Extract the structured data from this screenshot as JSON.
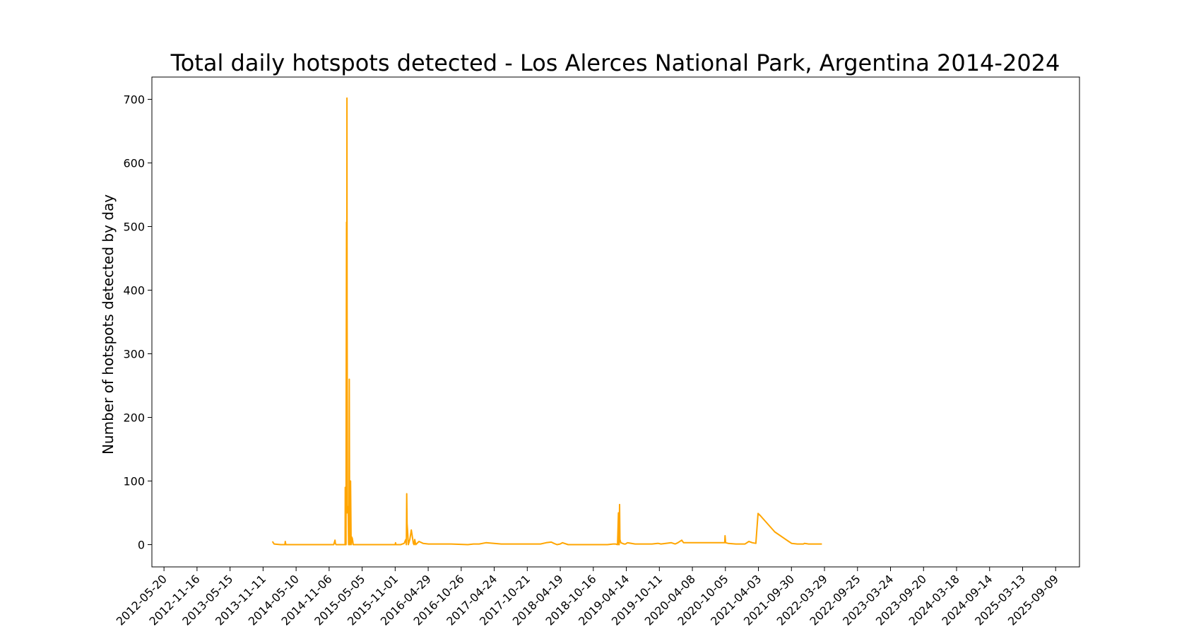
{
  "chart_data": {
    "type": "line",
    "title": "Total daily hotspots detected - Los Alerces National Park, Argentina 2014-2024",
    "xlabel": "",
    "ylabel": "Number of hotspots detected by day",
    "line_color": "#FFA500",
    "grid": false,
    "legend": "none",
    "xlim": [
      "2012-03-15",
      "2026-01-17"
    ],
    "ylim": [
      -35,
      735
    ],
    "x_ticks": [
      "2012-05-20",
      "2012-11-16",
      "2013-05-15",
      "2013-11-11",
      "2014-05-10",
      "2014-11-06",
      "2015-05-05",
      "2015-11-01",
      "2016-04-29",
      "2016-10-26",
      "2017-04-24",
      "2017-10-21",
      "2018-04-19",
      "2018-10-16",
      "2019-04-14",
      "2019-10-11",
      "2020-04-08",
      "2020-10-05",
      "2021-04-03",
      "2021-09-30",
      "2022-03-29",
      "2022-09-25",
      "2023-03-24",
      "2023-09-20",
      "2024-03-18",
      "2024-09-14",
      "2025-03-13",
      "2025-09-09"
    ],
    "y_ticks": [
      0,
      100,
      200,
      300,
      400,
      500,
      600,
      700
    ],
    "series": [
      {
        "name": "",
        "x": [
          "2014-01-01",
          "2014-01-10",
          "2014-02-15",
          "2014-03-10",
          "2014-03-12",
          "2014-03-15",
          "2014-06-01",
          "2014-09-01",
          "2014-12-01",
          "2014-12-08",
          "2014-12-10",
          "2014-12-14",
          "2015-01-10",
          "2015-02-01",
          "2015-02-02",
          "2015-02-04",
          "2015-02-05",
          "2015-02-06",
          "2015-02-07",
          "2015-02-09",
          "2015-02-10",
          "2015-02-11",
          "2015-02-12",
          "2015-02-13",
          "2015-02-14",
          "2015-02-16",
          "2015-02-18",
          "2015-02-20",
          "2015-02-22",
          "2015-02-24",
          "2015-02-26",
          "2015-02-28",
          "2015-03-03",
          "2015-03-06",
          "2015-03-07",
          "2015-03-09",
          "2015-03-12",
          "2015-03-15",
          "2015-03-17",
          "2015-05-01",
          "2015-06-01",
          "2015-09-01",
          "2015-11-01",
          "2015-11-03",
          "2015-11-05",
          "2015-12-01",
          "2015-12-20",
          "2015-12-29",
          "2016-01-01",
          "2016-01-03",
          "2016-01-05",
          "2016-01-08",
          "2016-01-12",
          "2016-01-20",
          "2016-01-28",
          "2016-02-04",
          "2016-02-08",
          "2016-02-12",
          "2016-02-16",
          "2016-02-21",
          "2016-03-10",
          "2016-04-01",
          "2016-05-01",
          "2016-06-01",
          "2016-09-01",
          "2016-12-01",
          "2017-01-01",
          "2017-02-01",
          "2017-03-10",
          "2017-06-01",
          "2017-09-01",
          "2018-01-01",
          "2018-02-01",
          "2018-03-01",
          "2018-03-15",
          "2018-04-01",
          "2018-04-18",
          "2018-05-01",
          "2018-06-01",
          "2018-09-01",
          "2018-12-01",
          "2019-01-01",
          "2019-02-01",
          "2019-02-05",
          "2019-02-10",
          "2019-02-14",
          "2019-02-25",
          "2019-03-02",
          "2019-03-04",
          "2019-03-06",
          "2019-03-08",
          "2019-03-10",
          "2019-03-15",
          "2019-04-01",
          "2019-04-10",
          "2019-04-20",
          "2019-06-01",
          "2019-09-01",
          "2019-10-01",
          "2019-10-05",
          "2019-10-20",
          "2019-11-15",
          "2019-12-15",
          "2020-01-05",
          "2020-01-20",
          "2020-02-10",
          "2020-02-20",
          "2020-04-01",
          "2020-07-01",
          "2020-09-01",
          "2020-09-25",
          "2020-10-01",
          "2020-10-03",
          "2020-10-06",
          "2020-10-20",
          "2020-12-01",
          "2021-01-20",
          "2021-02-10",
          "2021-03-01",
          "2021-03-20",
          "2021-04-01",
          "2021-04-15",
          "2021-07-01",
          "2021-09-15",
          "2021-10-01",
          "2021-11-01",
          "2021-12-01",
          "2021-12-05",
          "2021-12-10",
          "2022-01-01",
          "2022-03-01",
          "2022-03-15"
        ],
        "values": [
          5,
          1,
          0,
          0,
          5,
          0,
          0,
          0,
          0,
          7,
          2,
          0,
          0,
          0,
          90,
          5,
          0,
          0,
          230,
          507,
          50,
          702,
          370,
          220,
          50,
          60,
          45,
          0,
          0,
          260,
          0,
          0,
          100,
          5,
          0,
          12,
          10,
          5,
          0,
          0,
          0,
          0,
          0,
          3,
          0,
          0,
          2,
          8,
          0,
          80,
          33,
          20,
          0,
          8,
          23,
          10,
          2,
          0,
          8,
          0,
          5,
          2,
          1,
          1,
          1,
          0,
          1,
          1,
          3,
          1,
          1,
          1,
          3,
          4,
          2,
          0,
          1,
          3,
          0,
          0,
          0,
          0,
          1,
          1,
          1,
          1,
          0,
          50,
          0,
          0,
          63,
          8,
          3,
          1,
          1,
          3,
          1,
          1,
          2,
          2,
          1,
          2,
          3,
          1,
          3,
          7,
          3,
          3,
          3,
          3,
          3,
          3,
          14,
          3,
          2,
          1,
          1,
          5,
          3,
          2,
          49,
          45,
          20,
          5,
          2,
          1,
          1,
          1,
          2,
          1,
          1,
          1
        ]
      }
    ]
  }
}
